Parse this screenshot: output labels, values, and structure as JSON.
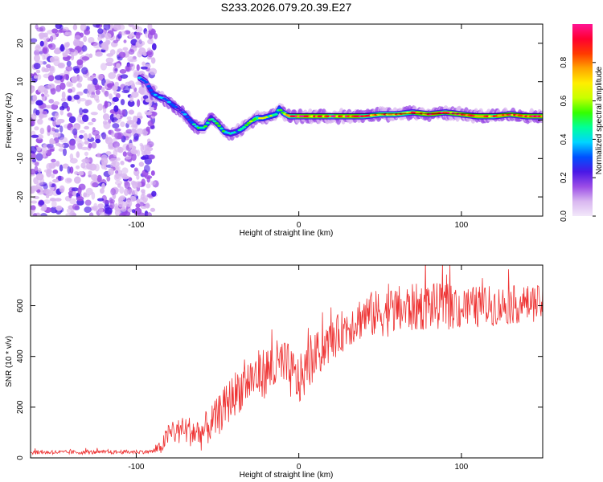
{
  "title": "S233.2026.079.20.39.E27",
  "chart_data": [
    {
      "type": "heatmap",
      "xlabel": "Height of straight line (km)",
      "ylabel": "Frequency (Hz)",
      "xlim": [
        -165,
        150
      ],
      "ylim": [
        -25,
        25
      ],
      "xticks": [
        -100,
        0,
        100
      ],
      "xtick_labels": [
        "-100",
        "0",
        "100"
      ],
      "yticks": [
        -20,
        -10,
        0,
        10,
        20
      ],
      "ytick_labels": [
        "-20",
        "-10",
        "0",
        "10",
        "20"
      ],
      "ridge": {
        "x": [
          -98,
          -94,
          -90,
          -86,
          -82,
          -78,
          -74,
          -70,
          -66,
          -62,
          -58,
          -54,
          -50,
          -46,
          -42,
          -38,
          -34,
          -30,
          -26,
          -22,
          -18,
          -14,
          -12,
          -10,
          -6,
          0,
          10,
          20,
          30,
          40,
          50,
          60,
          70,
          80,
          90,
          100,
          110,
          120,
          130,
          140,
          150
        ],
        "frequency": [
          11,
          10,
          7,
          6,
          5.5,
          4,
          3,
          1.5,
          -0.5,
          -2,
          -2,
          0.5,
          -1,
          -3,
          -3.5,
          -3,
          -2,
          -0.5,
          0.5,
          0.5,
          1,
          1.5,
          3,
          2,
          1,
          1,
          1,
          1,
          1,
          1,
          1.5,
          1.5,
          2,
          1.5,
          2,
          1.5,
          1,
          1,
          1.5,
          1,
          1
        ],
        "amplitude": [
          0.35,
          0.3,
          0.4,
          0.45,
          0.3,
          0.4,
          0.3,
          0.35,
          0.4,
          0.5,
          0.6,
          0.45,
          0.5,
          0.55,
          0.45,
          0.4,
          0.55,
          0.6,
          0.65,
          0.6,
          0.6,
          0.55,
          0.5,
          0.6,
          0.8,
          0.95,
          0.95,
          0.9,
          0.95,
          0.9,
          0.85,
          0.9,
          0.9,
          0.95,
          0.9,
          0.95,
          0.95,
          0.9,
          0.95,
          0.95,
          0.95
        ]
      },
      "noise_region": {
        "x_from": -165,
        "x_to": -88,
        "amplitude": "0.0-0.25"
      },
      "colorbar": {
        "label": "Normalized spectral amplitude",
        "range": [
          0,
          1
        ],
        "ticks": [
          0.0,
          0.2,
          0.4,
          0.6,
          0.8
        ],
        "tick_labels": [
          "0.0",
          "0.2",
          "0.4",
          "0.6",
          "0.8"
        ],
        "colors": [
          "#f2e8fa",
          "#d9b7f0",
          "#9b4de6",
          "#4a18e6",
          "#0050ff",
          "#00d4ff",
          "#00ff9a",
          "#33ff00",
          "#c8ff00",
          "#ffee00",
          "#ffa500",
          "#ff3a00",
          "#ff0030",
          "#ff1493"
        ]
      }
    },
    {
      "type": "line",
      "xlabel": "Height of straight line (km)",
      "ylabel": "SNR (10 * v/v)",
      "xlim": [
        -165,
        150
      ],
      "ylim": [
        0,
        760
      ],
      "xticks": [
        -100,
        0,
        100
      ],
      "xtick_labels": [
        "-100",
        "0",
        "100"
      ],
      "yticks": [
        0,
        200,
        400,
        600
      ],
      "ytick_labels": [
        "0",
        "200",
        "400",
        "600"
      ],
      "color": "#ee3333",
      "trend": {
        "x": [
          -165,
          -120,
          -90,
          -85,
          -80,
          -70,
          -60,
          -50,
          -40,
          -30,
          -20,
          -10,
          0,
          10,
          20,
          30,
          40,
          60,
          80,
          100,
          120,
          150
        ],
        "y": [
          22,
          22,
          25,
          40,
          95,
          110,
          95,
          160,
          250,
          310,
          340,
          370,
          300,
          400,
          460,
          520,
          560,
          580,
          600,
          590,
          600,
          610
        ]
      },
      "noise_amplitude": {
        "x": [
          -165,
          -90,
          -80,
          -40,
          -10,
          20,
          60,
          150
        ],
        "y": [
          8,
          8,
          45,
          90,
          110,
          80,
          100,
          70
        ]
      }
    }
  ]
}
